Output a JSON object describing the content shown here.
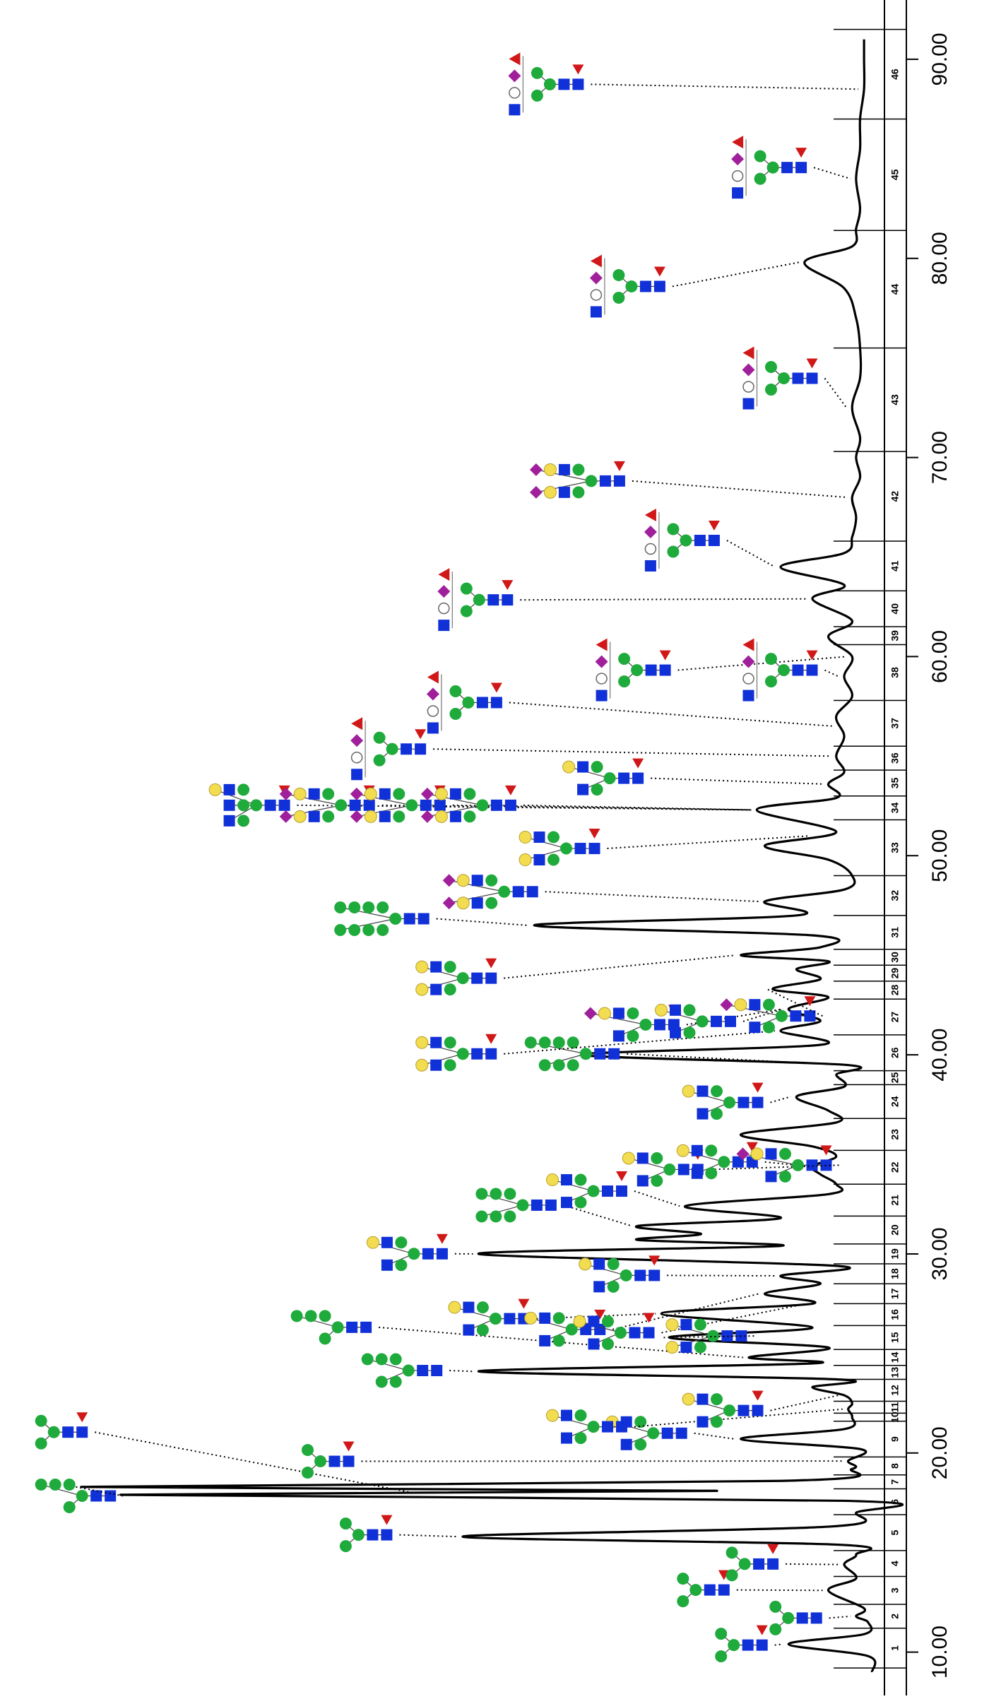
{
  "chart_data": {
    "type": "line",
    "x": [
      9.0,
      9.8,
      10.4,
      10.9,
      11.5,
      11.8,
      12.2,
      13.1,
      13.7,
      14.4,
      14.9,
      15.4,
      15.8,
      16.3,
      17.0,
      17.6,
      17.9,
      18.1,
      18.3,
      18.6,
      19.2,
      19.6,
      20.2,
      20.7,
      21.2,
      21.8,
      22.2,
      22.5,
      22.9,
      23.3,
      23.7,
      24.1,
      24.5,
      24.8,
      25.3,
      25.8,
      26.3,
      27.0,
      27.5,
      28.0,
      28.5,
      28.9,
      29.4,
      30.0,
      30.4,
      30.7,
      31.0,
      31.4,
      31.8,
      32.4,
      33.0,
      33.5,
      34.0,
      34.4,
      34.9,
      35.4,
      36.0,
      36.6,
      37.2,
      37.9,
      38.4,
      39.0,
      39.5,
      40.0,
      40.5,
      41.2,
      41.7,
      42.3,
      42.9,
      43.3,
      43.8,
      44.3,
      44.7,
      45.0,
      45.4,
      46.0,
      46.5,
      47.0,
      47.7,
      48.3,
      49.0,
      49.8,
      50.5,
      51.2,
      52.3,
      52.9,
      53.6,
      54.2,
      55.0,
      56.0,
      57.0,
      58.0,
      59.0,
      60.0,
      61.0,
      61.8,
      62.9,
      63.6,
      64.5,
      65.2,
      66.0,
      67.0,
      68.0,
      69.0,
      70.0,
      71.0,
      72.5,
      74.0,
      75.5,
      77.0,
      78.5,
      79.8,
      80.6,
      81.5,
      82.5,
      84.0,
      85.5,
      87.0,
      88.5,
      90.0,
      91.0
    ],
    "series": [
      {
        "color": "#000000",
        "values": [
          0.5,
          1,
          11,
          1.5,
          1,
          2.5,
          1.5,
          6,
          2.5,
          4,
          2.5,
          5,
          52,
          6,
          2.5,
          4,
          95,
          20,
          100,
          12,
          3,
          3.5,
          2,
          17,
          4,
          3,
          3.5,
          3,
          4,
          8,
          5,
          50,
          8,
          16,
          6,
          26,
          8,
          27,
          8,
          14,
          7,
          12,
          5,
          50,
          12,
          30,
          22,
          30,
          12,
          24,
          6,
          5,
          7,
          8,
          5,
          8,
          17,
          5,
          6,
          10,
          4,
          5,
          4,
          37,
          7,
          12,
          7,
          11,
          6,
          13,
          7,
          10,
          6,
          17,
          7,
          8,
          43,
          10,
          14,
          4,
          3,
          6,
          14,
          5,
          15,
          5,
          6,
          4,
          5,
          4,
          5,
          3,
          4,
          3,
          6,
          3,
          8,
          4,
          12,
          4,
          3,
          2.5,
          3,
          2,
          2.5,
          2,
          3,
          2,
          2,
          2.5,
          4,
          9,
          3,
          2.5,
          2,
          2.5,
          2,
          2,
          1.5,
          1.5,
          1.5
        ]
      }
    ],
    "xlim": [
      8,
      92.8
    ],
    "ylim": [
      0,
      100
    ],
    "xticks": [
      {
        "value": 10,
        "label": "10.00"
      },
      {
        "value": 20,
        "label": "20.00"
      },
      {
        "value": 30,
        "label": "30.00"
      },
      {
        "value": 40,
        "label": "40.00"
      },
      {
        "value": 50,
        "label": "50.00"
      },
      {
        "value": 60,
        "label": "60.00"
      },
      {
        "value": 70,
        "label": "70.00"
      },
      {
        "value": 80,
        "label": "80.00"
      },
      {
        "value": 90,
        "label": "90.00"
      }
    ],
    "peaks": [
      1,
      2,
      3,
      4,
      5,
      6,
      7,
      8,
      9,
      10,
      11,
      12,
      13,
      14,
      15,
      16,
      17,
      18,
      19,
      20,
      21,
      22,
      23,
      24,
      25,
      26,
      27,
      28,
      29,
      30,
      31,
      32,
      33,
      34,
      35,
      36,
      37,
      38,
      39,
      40,
      41,
      42,
      43,
      44,
      45,
      46
    ],
    "peak_bounds": [
      9.2,
      11.2,
      12.4,
      13.8,
      15.1,
      16.9,
      18.2,
      18.9,
      19.8,
      21.6,
      22.0,
      22.6,
      23.7,
      24.4,
      25.2,
      26.4,
      27.5,
      28.5,
      29.5,
      30.5,
      31.9,
      33.5,
      35.2,
      36.8,
      38.5,
      39.2,
      41.0,
      42.8,
      43.7,
      44.5,
      45.3,
      47.0,
      49.0,
      51.8,
      53.0,
      54.3,
      55.5,
      57.8,
      60.6,
      61.5,
      63.3,
      65.8,
      70.3,
      75.5,
      81.4,
      87.0,
      91.5
    ]
  }
}
